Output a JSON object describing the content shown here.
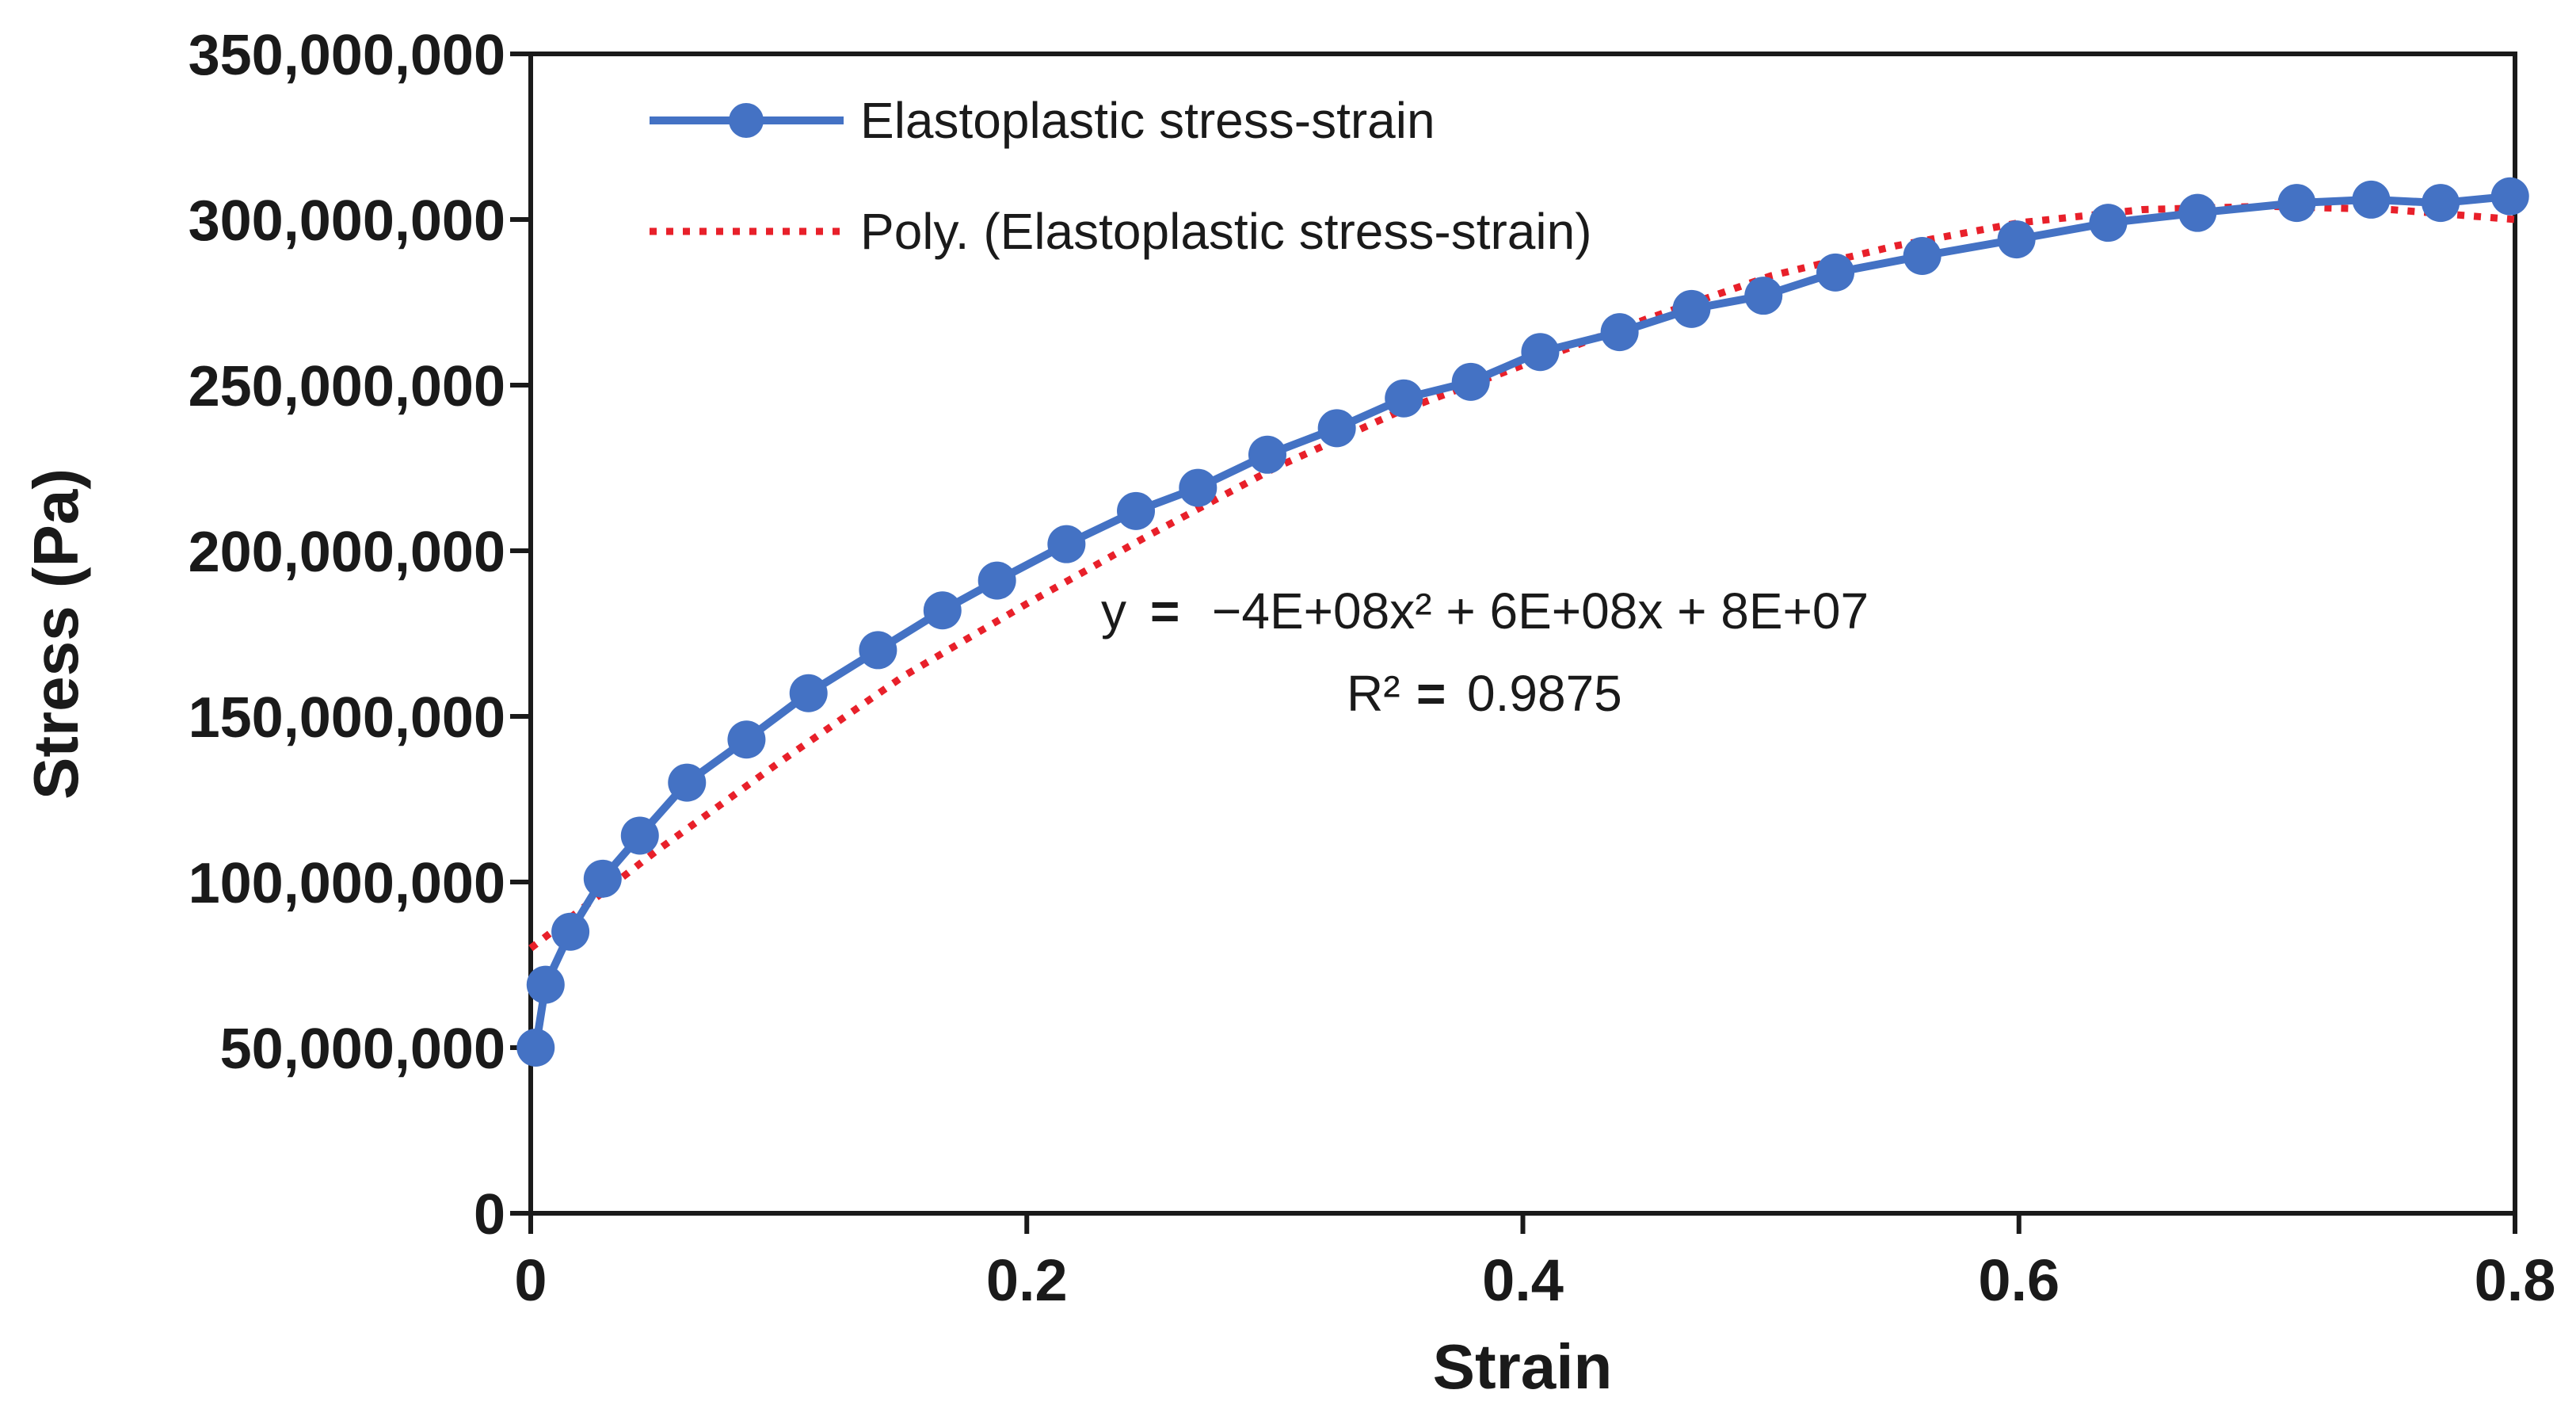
{
  "chart_data": {
    "type": "line",
    "title": "",
    "xlabel": "Strain",
    "ylabel": "Stress (Pa)",
    "xlim": [
      0,
      0.8
    ],
    "ylim": [
      0,
      350000000
    ],
    "x_ticks": [
      0,
      0.2,
      0.4,
      0.6,
      0.8
    ],
    "x_tick_labels": [
      "0",
      "0.2",
      "0.4",
      "0.6",
      "0.8"
    ],
    "y_ticks": [
      0,
      50000000,
      100000000,
      150000000,
      200000000,
      250000000,
      300000000,
      350000000
    ],
    "y_tick_labels": [
      "0",
      "50,000,000",
      "100,000,000",
      "150,000,000",
      "200,000,000",
      "250,000,000",
      "300,000,000",
      "350,000,000"
    ],
    "grid": false,
    "legend_position": "top-left",
    "series": [
      {
        "name": "Elastoplastic stress-strain",
        "style": "line-with-markers",
        "color": "#4472c4",
        "x": [
          0.002,
          0.006,
          0.016,
          0.029,
          0.044,
          0.063,
          0.087,
          0.112,
          0.14,
          0.166,
          0.188,
          0.216,
          0.244,
          0.269,
          0.297,
          0.325,
          0.352,
          0.379,
          0.407,
          0.439,
          0.468,
          0.497,
          0.526,
          0.561,
          0.599,
          0.636,
          0.672,
          0.712,
          0.742,
          0.77,
          0.798
        ],
        "y": [
          50000000,
          69000000,
          85000000,
          101000000,
          114000000,
          130000000,
          143000000,
          157000000,
          170000000,
          182000000,
          191000000,
          202000000,
          212000000,
          219000000,
          229000000,
          237000000,
          246000000,
          251000000,
          260000000,
          266000000,
          273000000,
          277000000,
          284000000,
          289000000,
          294000000,
          299000000,
          302000000,
          305000000,
          306000000,
          305000000,
          307000000
        ]
      },
      {
        "name": "Poly. (Elastoplastic stress-strain)",
        "style": "dotted-trendline",
        "color": "#e8202a",
        "x": [
          0,
          0.05,
          0.1,
          0.15,
          0.2,
          0.25,
          0.3,
          0.35,
          0.4,
          0.45,
          0.5,
          0.55,
          0.6,
          0.65,
          0.7,
          0.75,
          0.8
        ],
        "y": [
          80000000,
          109000000,
          136000000,
          162000000,
          184000000,
          205000000,
          225000000,
          242000000,
          256000000,
          270000000,
          283000000,
          292000000,
          299000000,
          303000000,
          304000000,
          303000000,
          300000000
        ]
      }
    ],
    "annotation": {
      "equation_prefix": "y",
      "equation_sign": "=",
      "equation_body": "−4E+08x² + 6E+08x + 8E+07",
      "r2_label": "R²",
      "r2_sign": "=",
      "r2_value": "0.9875"
    }
  }
}
